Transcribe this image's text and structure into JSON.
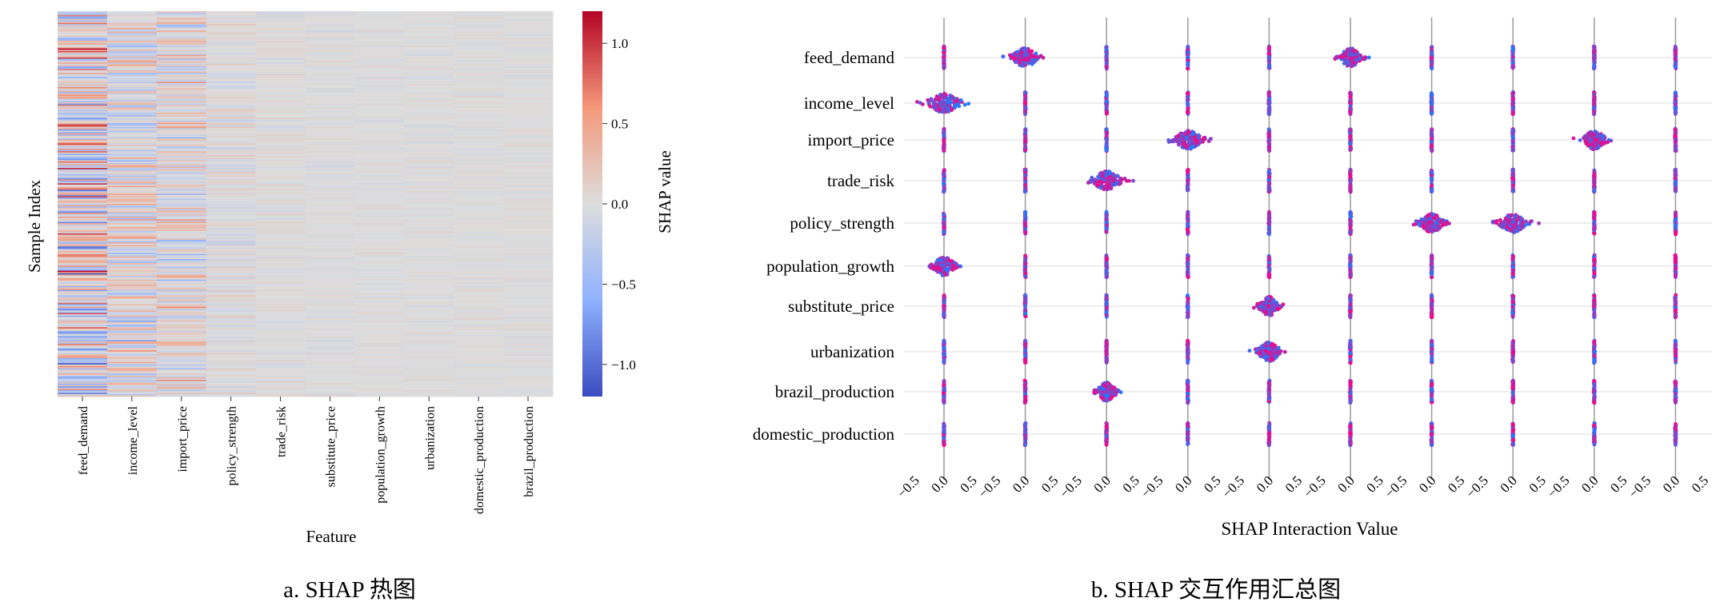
{
  "figure_a": {
    "caption": "a. SHAP 热图",
    "ylabel": "Sample Index",
    "xlabel": "Feature",
    "colorbar_label": "SHAP value"
  },
  "figure_b": {
    "caption": "b. SHAP 交互作用汇总图",
    "xlabel": "SHAP Interaction Value"
  },
  "colors": {
    "cmap_low": "#3b4cc0",
    "cmap_mid": "#dddddd",
    "cmap_high": "#b40426",
    "dot_low": "#1f7bff",
    "dot_high": "#ff0080",
    "zero_line": "#999999",
    "grid": "#dcdcdc"
  },
  "chart_data": [
    {
      "type": "heatmap",
      "title": "",
      "xlabel": "Feature",
      "ylabel": "Sample Index",
      "x_categories": [
        "feed_demand",
        "income_level",
        "import_price",
        "policy_strength",
        "trade_risk",
        "substitute_price",
        "population_growth",
        "urbanization",
        "domestic_production",
        "brazil_production"
      ],
      "colorbar": {
        "label": "SHAP value",
        "range": [
          -1.2,
          1.2
        ],
        "ticks": [
          1.0,
          0.5,
          0.0,
          -0.5,
          -1.0
        ],
        "tick_labels": [
          "1.0",
          "0.5",
          "0.0",
          "−0.5",
          "−1.0"
        ],
        "colormap": "coolwarm"
      },
      "approx_value_spread_by_feature": [
        0.6,
        0.35,
        0.3,
        0.12,
        0.07,
        0.06,
        0.05,
        0.05,
        0.05,
        0.05
      ],
      "n_samples_approx": 300
    },
    {
      "type": "scatter",
      "title": "",
      "xlabel": "SHAP Interaction Value",
      "y_categories": [
        "feed_demand",
        "income_level",
        "import_price",
        "trade_risk",
        "policy_strength",
        "population_growth",
        "substitute_price",
        "urbanization",
        "brazil_production",
        "domestic_production"
      ],
      "panels": 10,
      "xlim": [
        -0.6,
        0.6
      ],
      "x_ticks": [
        -0.5,
        0.0,
        0.5
      ],
      "x_tick_labels": [
        "−0.5",
        "0.0",
        "0.5"
      ],
      "spread_matrix": [
        [
          0.0,
          0.45,
          0.0,
          0.0,
          0.0,
          0.35,
          0.0,
          0.0,
          0.0,
          0.0
        ],
        [
          0.55,
          0.0,
          0.0,
          0.0,
          0.0,
          0.0,
          0.0,
          0.0,
          0.0,
          0.0
        ],
        [
          0.0,
          0.0,
          0.0,
          0.5,
          0.0,
          0.0,
          0.0,
          0.0,
          0.38,
          0.0
        ],
        [
          0.0,
          0.0,
          0.5,
          0.0,
          0.0,
          0.0,
          0.0,
          0.0,
          0.0,
          0.0
        ],
        [
          0.0,
          0.0,
          0.0,
          0.0,
          0.0,
          0.0,
          0.4,
          0.45,
          0.0,
          0.0
        ],
        [
          0.4,
          0.0,
          0.0,
          0.0,
          0.0,
          0.0,
          0.0,
          0.0,
          0.0,
          0.0
        ],
        [
          0.0,
          0.0,
          0.0,
          0.0,
          0.35,
          0.0,
          0.0,
          0.0,
          0.0,
          0.0
        ],
        [
          0.0,
          0.0,
          0.0,
          0.0,
          0.4,
          0.0,
          0.0,
          0.0,
          0.0,
          0.0
        ],
        [
          0.0,
          0.0,
          0.32,
          0.0,
          0.0,
          0.0,
          0.0,
          0.0,
          0.0,
          0.0
        ],
        [
          0.0,
          0.0,
          0.0,
          0.0,
          0.0,
          0.0,
          0.0,
          0.0,
          0.0,
          0.0
        ]
      ]
    }
  ]
}
